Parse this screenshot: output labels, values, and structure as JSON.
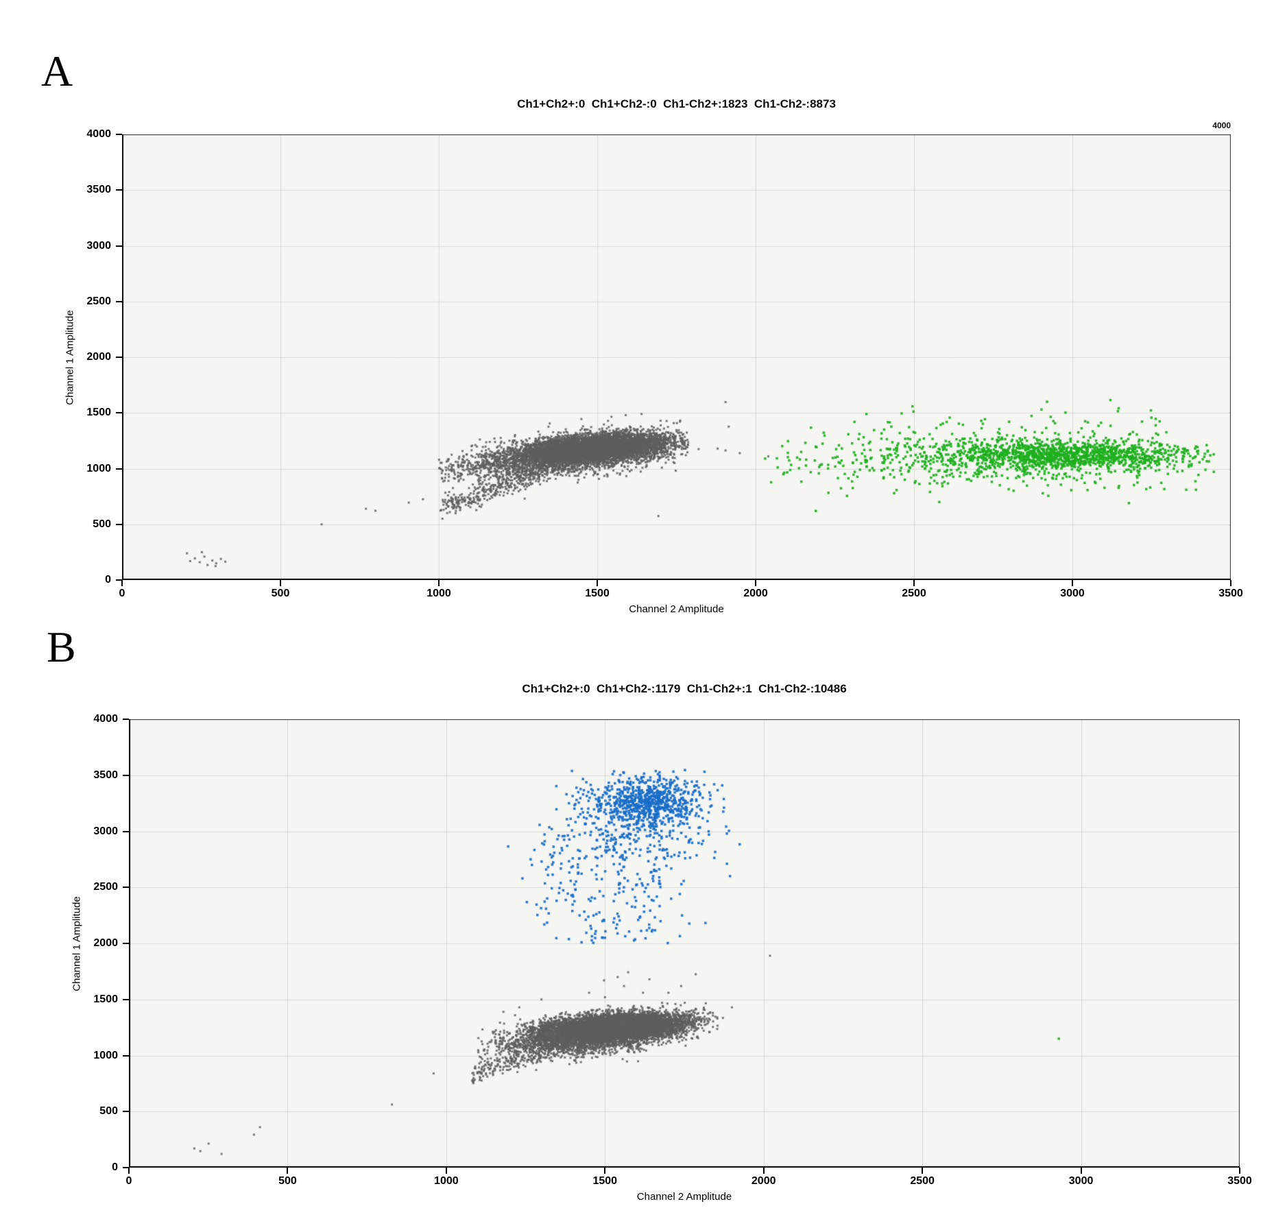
{
  "style": {
    "page_bg": "#ffffff",
    "plot_bg": "#f5f5f2",
    "grid_color": "#d9d9d9",
    "border_color": "#2b2b2b",
    "axis_color": "#000000",
    "gray_droplet_color": "#5e5e5e",
    "green_droplet_color": "#1eb01e",
    "blue_droplet_color": "#196ec8"
  },
  "chart_data": [
    {
      "panel_label": "A",
      "type": "scatter",
      "title": "Ch1+Ch2+:0  Ch1+Ch2-:0  Ch1-Ch2+:1823  Ch1-Ch2-:8873",
      "corner_label": "4000",
      "xlabel": "Channel 2 Amplitude",
      "ylabel": "Channel 1 Amplitude",
      "x_axis": {
        "min": 0,
        "max": 3500,
        "step": 500
      },
      "y_axis": {
        "min": 0,
        "max": 4000,
        "step": 500
      },
      "grid": true,
      "quadrant_counts": {
        "Ch1+Ch2+": 0,
        "Ch1+Ch2-": 0,
        "Ch1-Ch2+": 1823,
        "Ch1-Ch2-": 8873
      },
      "series": [
        {
          "name": "ch1neg-ch2neg-droplets",
          "color": "rgba(94,94,94,0.85)",
          "size": 3,
          "clusters": [
            {
              "kind": "gauss",
              "seed": 11,
              "count": 5600,
              "cx": 1495,
              "cy": 1190,
              "sx": 108,
              "sy": 60,
              "rho": 0.35,
              "bounds": [
                1020,
                1790,
                760,
                1520
              ]
            },
            {
              "kind": "gauss",
              "seed": 12,
              "count": 2940,
              "cx": 1415,
              "cy": 1115,
              "sx": 168,
              "sy": 95,
              "rho": 0.55,
              "bounds": [
                1000,
                1780,
                700,
                1460
              ]
            },
            {
              "kind": "band",
              "seed": 13,
              "count": 300,
              "xmin": 1005,
              "xmax": 1330,
              "y0": 645,
              "slope": 0.98,
              "jitter": 48
            }
          ],
          "points": [
            [
              205,
              240
            ],
            [
              215,
              170
            ],
            [
              230,
              195
            ],
            [
              245,
              160
            ],
            [
              252,
              250
            ],
            [
              260,
              210
            ],
            [
              270,
              135
            ],
            [
              285,
              175
            ],
            [
              297,
              150
            ],
            [
              312,
              190
            ],
            [
              326,
              165
            ],
            [
              295,
              125
            ],
            [
              630,
              500
            ],
            [
              770,
              640
            ],
            [
              800,
              622
            ],
            [
              905,
              695
            ],
            [
              950,
              725
            ],
            [
              1693,
              574
            ],
            [
              1905,
              1597
            ],
            [
              1915,
              1377
            ],
            [
              1905,
              1163
            ],
            [
              1950,
              1139
            ],
            [
              1820,
              1175
            ],
            [
              1880,
              1180
            ],
            [
              2040,
              1110
            ],
            [
              1750,
              1345
            ],
            [
              1700,
              1430
            ],
            [
              1640,
              1490
            ],
            [
              1590,
              1480
            ],
            [
              1545,
              1465
            ],
            [
              1450,
              1445
            ],
            [
              1350,
              1405
            ],
            [
              1240,
              1290
            ]
          ]
        },
        {
          "name": "ch1neg-ch2pos-droplets",
          "color": "rgba(30,176,30,0.92)",
          "size": 3.5,
          "clusters": [
            {
              "kind": "gauss",
              "seed": 14,
              "count": 1000,
              "cx": 2990,
              "cy": 1115,
              "sx": 185,
              "sy": 60,
              "rho": 0,
              "bounds": [
                2330,
                3460,
                880,
                1400
              ]
            },
            {
              "kind": "gauss",
              "seed": 15,
              "count": 760,
              "cx": 2770,
              "cy": 1105,
              "sx": 330,
              "sy": 125,
              "rho": 0,
              "bounds": [
                2040,
                3450,
                620,
                1620
              ]
            },
            {
              "kind": "uniform",
              "seed": 16,
              "count": 35,
              "xmin": 2300,
              "xmax": 3340,
              "ymin": 1260,
              "ymax": 1580
            },
            {
              "kind": "uniform",
              "seed": 17,
              "count": 20,
              "xmin": 2150,
              "xmax": 3400,
              "ymin": 770,
              "ymax": 960
            }
          ],
          "points": [
            [
              2030,
              1090
            ],
            [
              2190,
              620
            ],
            [
              2580,
              700
            ],
            [
              3420,
              990
            ],
            [
              3390,
              810
            ],
            [
              2920,
              1600
            ],
            [
              3120,
              1615
            ],
            [
              2350,
              1490
            ]
          ]
        }
      ]
    },
    {
      "panel_label": "B",
      "type": "scatter",
      "title": "Ch1+Ch2+:0  Ch1+Ch2-:1179  Ch1-Ch2+:1  Ch1-Ch2-:10486",
      "corner_label": "",
      "xlabel": "Channel 2 Amplitude",
      "ylabel": "Channel 1 Amplitude",
      "x_axis": {
        "min": 0,
        "max": 3500,
        "step": 500
      },
      "y_axis": {
        "min": 0,
        "max": 4000,
        "step": 500
      },
      "grid": true,
      "quadrant_counts": {
        "Ch1+Ch2+": 0,
        "Ch1+Ch2-": 1179,
        "Ch1-Ch2+": 1,
        "Ch1-Ch2-": 10486
      },
      "series": [
        {
          "name": "ch1neg-ch2neg-droplets",
          "color": "rgba(94,94,94,0.85)",
          "size": 3,
          "clusters": [
            {
              "kind": "gauss",
              "seed": 21,
              "count": 7600,
              "cx": 1530,
              "cy": 1255,
              "sx": 105,
              "sy": 58,
              "rho": 0.3,
              "bounds": [
                1150,
                1880,
                1000,
                1480
              ]
            },
            {
              "kind": "gauss",
              "seed": 22,
              "count": 2680,
              "cx": 1445,
              "cy": 1165,
              "sx": 150,
              "sy": 88,
              "rho": 0.5,
              "bounds": [
                1100,
                1860,
                900,
                1500
              ]
            },
            {
              "kind": "band",
              "seed": 23,
              "count": 180,
              "xmin": 1080,
              "xmax": 1350,
              "y0": 830,
              "slope": 0.85,
              "jitter": 45
            }
          ],
          "points": [
            [
              206,
              171
            ],
            [
              225,
              147
            ],
            [
              251,
              214
            ],
            [
              292,
              122
            ],
            [
              394,
              294
            ],
            [
              413,
              361
            ],
            [
              829,
              563
            ],
            [
              960,
              840
            ],
            [
              1573,
              1743
            ],
            [
              1497,
              1670
            ],
            [
              1540,
              1700
            ],
            [
              1786,
              1725
            ],
            [
              1560,
              1620
            ],
            [
              1620,
              1560
            ],
            [
              1680,
              1470
            ],
            [
              2020,
              1890
            ],
            [
              1900,
              1430
            ],
            [
              1840,
              1380
            ],
            [
              1450,
              1560
            ],
            [
              1500,
              1520
            ],
            [
              1230,
              1430
            ],
            [
              1300,
              1500
            ],
            [
              1180,
              1390
            ],
            [
              1700,
              1560
            ],
            [
              1740,
              1620
            ],
            [
              1640,
              1680
            ]
          ]
        },
        {
          "name": "ch1pos-ch2neg-droplets",
          "color": "rgba(25,110,200,0.92)",
          "size": 3.5,
          "clusters": [
            {
              "kind": "gauss",
              "seed": 24,
              "count": 640,
              "cx": 1632,
              "cy": 3268,
              "sx": 82,
              "sy": 108,
              "rho": 0.05,
              "bounds": [
                1390,
                1930,
                2960,
                3555
              ]
            },
            {
              "kind": "gauss",
              "seed": 25,
              "count": 300,
              "cx": 1580,
              "cy": 3080,
              "sx": 135,
              "sy": 215,
              "rho": 0,
              "bounds": [
                1290,
                1950,
                2380,
                3555
              ]
            },
            {
              "kind": "vrain",
              "seed": 26,
              "count": 208,
              "cx": 1565,
              "sx": 112,
              "ymin": 2000,
              "ymax": 2980,
              "bounds": [
                1300,
                1900,
                2000,
                2980
              ]
            },
            {
              "kind": "uniform",
              "seed": 27,
              "count": 24,
              "xmin": 1250,
              "xmax": 1430,
              "ymin": 2250,
              "ymax": 2950
            }
          ],
          "points": [
            [
              1894,
              2600
            ],
            [
              1195,
              2865
            ],
            [
              1270,
              2700
            ],
            [
              1355,
              2450
            ],
            [
              1240,
              2580
            ],
            [
              1420,
              2250
            ],
            [
              1500,
              2050
            ]
          ]
        },
        {
          "name": "ch1neg-ch2pos-droplets",
          "color": "rgba(30,176,30,0.92)",
          "size": 3.5,
          "clusters": [],
          "points": [
            [
              2930,
              1150
            ]
          ]
        }
      ]
    }
  ]
}
